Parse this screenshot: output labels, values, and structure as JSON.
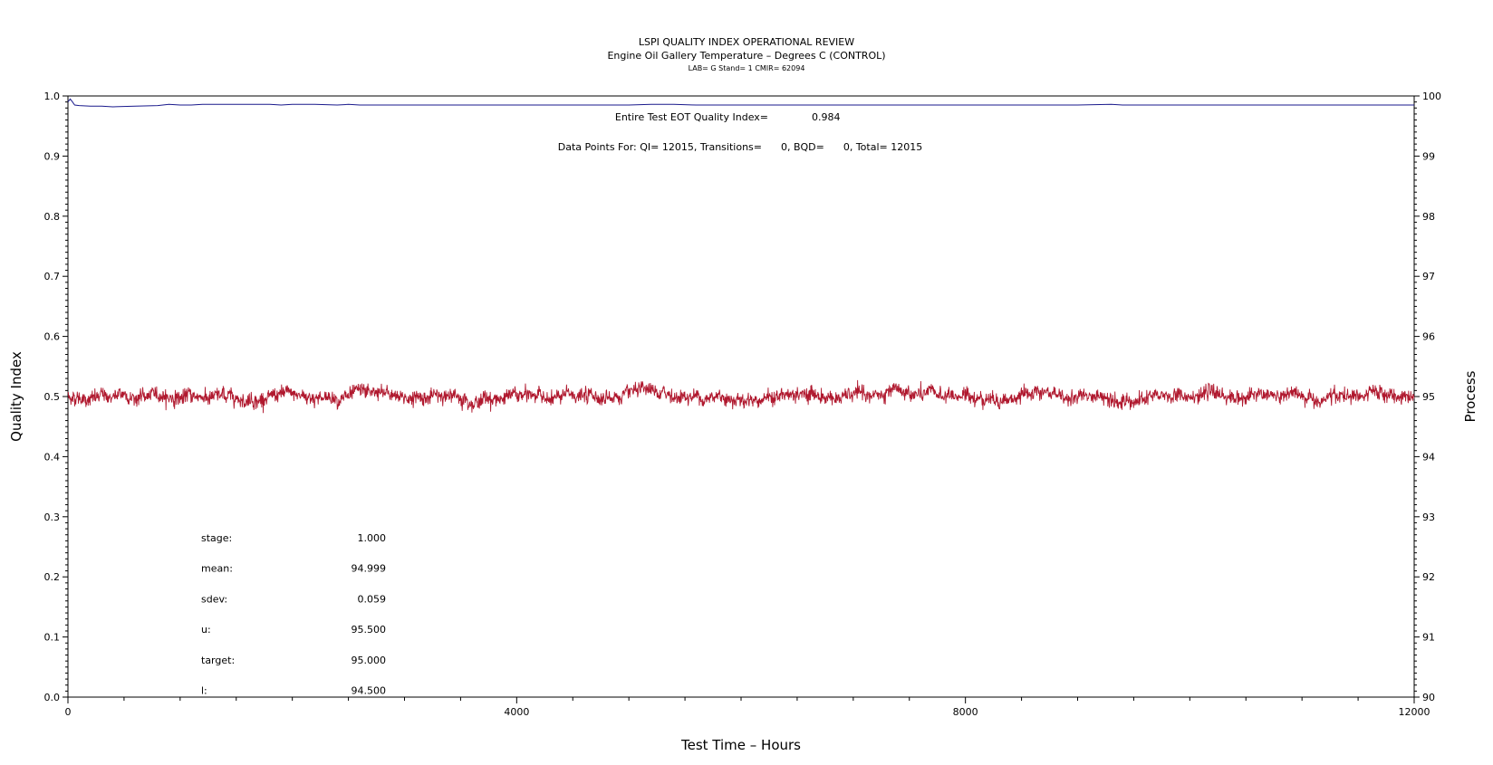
{
  "chart_data": {
    "type": "line",
    "title": "LSPI QUALITY INDEX OPERATIONAL REVIEW",
    "subtitle": "Engine Oil Gallery Temperature – Degrees C (CONTROL)",
    "subtitle2": "LAB= G Stand= 1 CMIR= 62094",
    "xlabel": "Test Time – Hours",
    "ylabel": "Quality Index",
    "y2label": "Process",
    "xlim": [
      0,
      12000
    ],
    "ylim": [
      0.0,
      1.0
    ],
    "y2lim": [
      90,
      100
    ],
    "x_ticks": [
      "0",
      "4000",
      "8000",
      "12000"
    ],
    "x_tick_values": [
      0,
      4000,
      8000,
      12000
    ],
    "y_ticks": [
      "0.0",
      "0.1",
      "0.2",
      "0.3",
      "0.4",
      "0.5",
      "0.6",
      "0.7",
      "0.8",
      "0.9",
      "1.0"
    ],
    "y2_ticks": [
      "90",
      "91",
      "92",
      "93",
      "94",
      "95",
      "96",
      "97",
      "98",
      "99",
      "100"
    ],
    "series": [
      {
        "axis": "left",
        "color": "#1a1a8c",
        "x": [
          0,
          20,
          40,
          60,
          100,
          200,
          300,
          400,
          600,
          800,
          900,
          1000,
          1100,
          1200,
          1500,
          1800,
          1900,
          2000,
          2200,
          2400,
          2500,
          2600,
          3000,
          4000,
          5000,
          5200,
          5400,
          5600,
          6000,
          7000,
          8000,
          9000,
          9300,
          9400,
          10000,
          11000,
          12000
        ],
        "values": [
          0.99,
          0.995,
          0.99,
          0.985,
          0.984,
          0.983,
          0.983,
          0.982,
          0.983,
          0.984,
          0.986,
          0.985,
          0.985,
          0.986,
          0.986,
          0.986,
          0.985,
          0.986,
          0.986,
          0.985,
          0.986,
          0.985,
          0.985,
          0.985,
          0.985,
          0.986,
          0.986,
          0.985,
          0.985,
          0.985,
          0.985,
          0.985,
          0.986,
          0.985,
          0.985,
          0.985,
          0.985
        ]
      },
      {
        "axis": "right",
        "color": "#b0182e",
        "mean": 94.999,
        "sdev": 0.059,
        "points": 12015
      }
    ],
    "annotations": {
      "eot_label": "Entire Test EOT Quality Index=",
      "eot_value": "0.984",
      "data_points_text": "Data Points For: QI= 12015, Transitions=      0, BQD=      0, Total= 12015"
    },
    "stats": [
      {
        "label": "stage:",
        "value": "1.000"
      },
      {
        "label": "mean:",
        "value": "94.999"
      },
      {
        "label": "sdev:",
        "value": "0.059"
      },
      {
        "label": "u:",
        "value": "95.500"
      },
      {
        "label": "target:",
        "value": "95.000"
      },
      {
        "label": "l:",
        "value": "94.500"
      }
    ]
  }
}
